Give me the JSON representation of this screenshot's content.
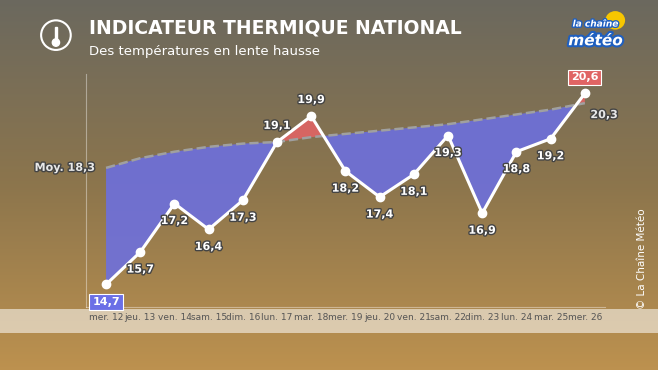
{
  "chart_data": {
    "type": "line",
    "title": "INDICATEUR THERMIQUE NATIONAL",
    "subtitle": "Des températures en lente hausse",
    "logo": [
      "la chaîne",
      "météo"
    ],
    "source": "© La Chaîne Météo",
    "categories": [
      "mer. 12",
      "jeu. 13",
      "ven. 14",
      "sam. 15",
      "dim. 16",
      "lun. 17",
      "mar. 18",
      "mer. 19",
      "jeu. 20",
      "ven. 21",
      "sam. 22",
      "dim. 23",
      "lun. 24",
      "mar. 25",
      "mer. 26"
    ],
    "series": [
      {
        "color": "#ffffff",
        "marker": "o",
        "line_style": "solid",
        "data_labels": true,
        "values": [
          14.7,
          15.7,
          17.2,
          16.4,
          17.3,
          19.1,
          19.9,
          18.2,
          17.4,
          18.1,
          19.3,
          16.9,
          18.8,
          19.2,
          20.6
        ],
        "value_labels": [
          "14,7",
          "15,7",
          "17,2",
          "16,4",
          "17,3",
          "19,1",
          "19,9",
          "18,2",
          "17,4",
          "18,1",
          "19,3",
          "16,9",
          "18,8",
          "19,2",
          "20,6"
        ]
      },
      {
        "color": "#a0a0a0",
        "line_style": "dashed",
        "data_labels": true,
        "values": [
          18.3,
          18.6,
          18.8,
          18.95,
          19.05,
          19.1,
          19.25,
          19.35,
          19.45,
          19.55,
          19.65,
          19.8,
          19.95,
          20.1,
          20.3
        ],
        "value_labels": [
          "Moy. 18,3",
          null,
          null,
          null,
          null,
          null,
          null,
          null,
          null,
          null,
          null,
          null,
          null,
          null,
          "20,3"
        ]
      }
    ],
    "ylim": [
      14.0,
      21.2
    ],
    "yticks": [],
    "tick_labels": "x",
    "grid": false
  }
}
